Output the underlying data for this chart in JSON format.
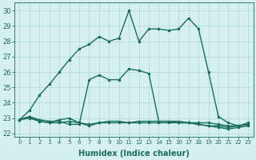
{
  "x": [
    0,
    1,
    2,
    3,
    4,
    5,
    6,
    7,
    8,
    9,
    10,
    11,
    12,
    13,
    14,
    15,
    16,
    17,
    18,
    19,
    20,
    21,
    22,
    23
  ],
  "line_main": [
    22.9,
    23.5,
    24.5,
    25.2,
    26.0,
    26.8,
    27.5,
    27.8,
    28.3,
    28.0,
    28.2,
    30.0,
    28.0,
    28.8,
    28.8,
    28.7,
    28.8,
    29.5,
    28.8,
    26.0,
    23.1,
    22.7,
    22.5,
    22.7
  ],
  "line_mid": [
    22.9,
    23.1,
    22.9,
    22.8,
    22.8,
    22.6,
    22.6,
    25.5,
    25.8,
    25.5,
    25.5,
    26.2,
    26.1,
    25.9,
    22.8,
    22.8,
    22.7,
    22.7,
    22.7,
    22.7,
    22.6,
    22.5,
    22.5,
    22.6
  ],
  "line_flat1": [
    22.9,
    23.0,
    22.8,
    22.7,
    22.9,
    23.0,
    22.7,
    22.5,
    22.7,
    22.8,
    22.8,
    22.7,
    22.8,
    22.8,
    22.8,
    22.8,
    22.8,
    22.7,
    22.6,
    22.5,
    22.5,
    22.4,
    22.5,
    22.6
  ],
  "line_flat2": [
    22.9,
    23.1,
    22.8,
    22.7,
    22.7,
    22.8,
    22.7,
    22.6,
    22.7,
    22.7,
    22.7,
    22.7,
    22.7,
    22.7,
    22.7,
    22.7,
    22.7,
    22.7,
    22.6,
    22.5,
    22.4,
    22.3,
    22.4,
    22.5
  ],
  "color": "#1a6e5e",
  "bg_color": "#d6f0ee",
  "grid_color": "#aad8d3",
  "xlabel": "Humidex (Indice chaleur)",
  "ylim": [
    21.8,
    30.5
  ],
  "xlim": [
    -0.5,
    23.5
  ],
  "yticks": [
    22,
    23,
    24,
    25,
    26,
    27,
    28,
    29,
    30
  ],
  "xticks": [
    0,
    1,
    2,
    3,
    4,
    5,
    6,
    7,
    8,
    9,
    10,
    11,
    12,
    13,
    14,
    15,
    16,
    17,
    18,
    19,
    20,
    21,
    22,
    23
  ],
  "marker": ".",
  "markersize": 3,
  "linewidth": 1.0
}
